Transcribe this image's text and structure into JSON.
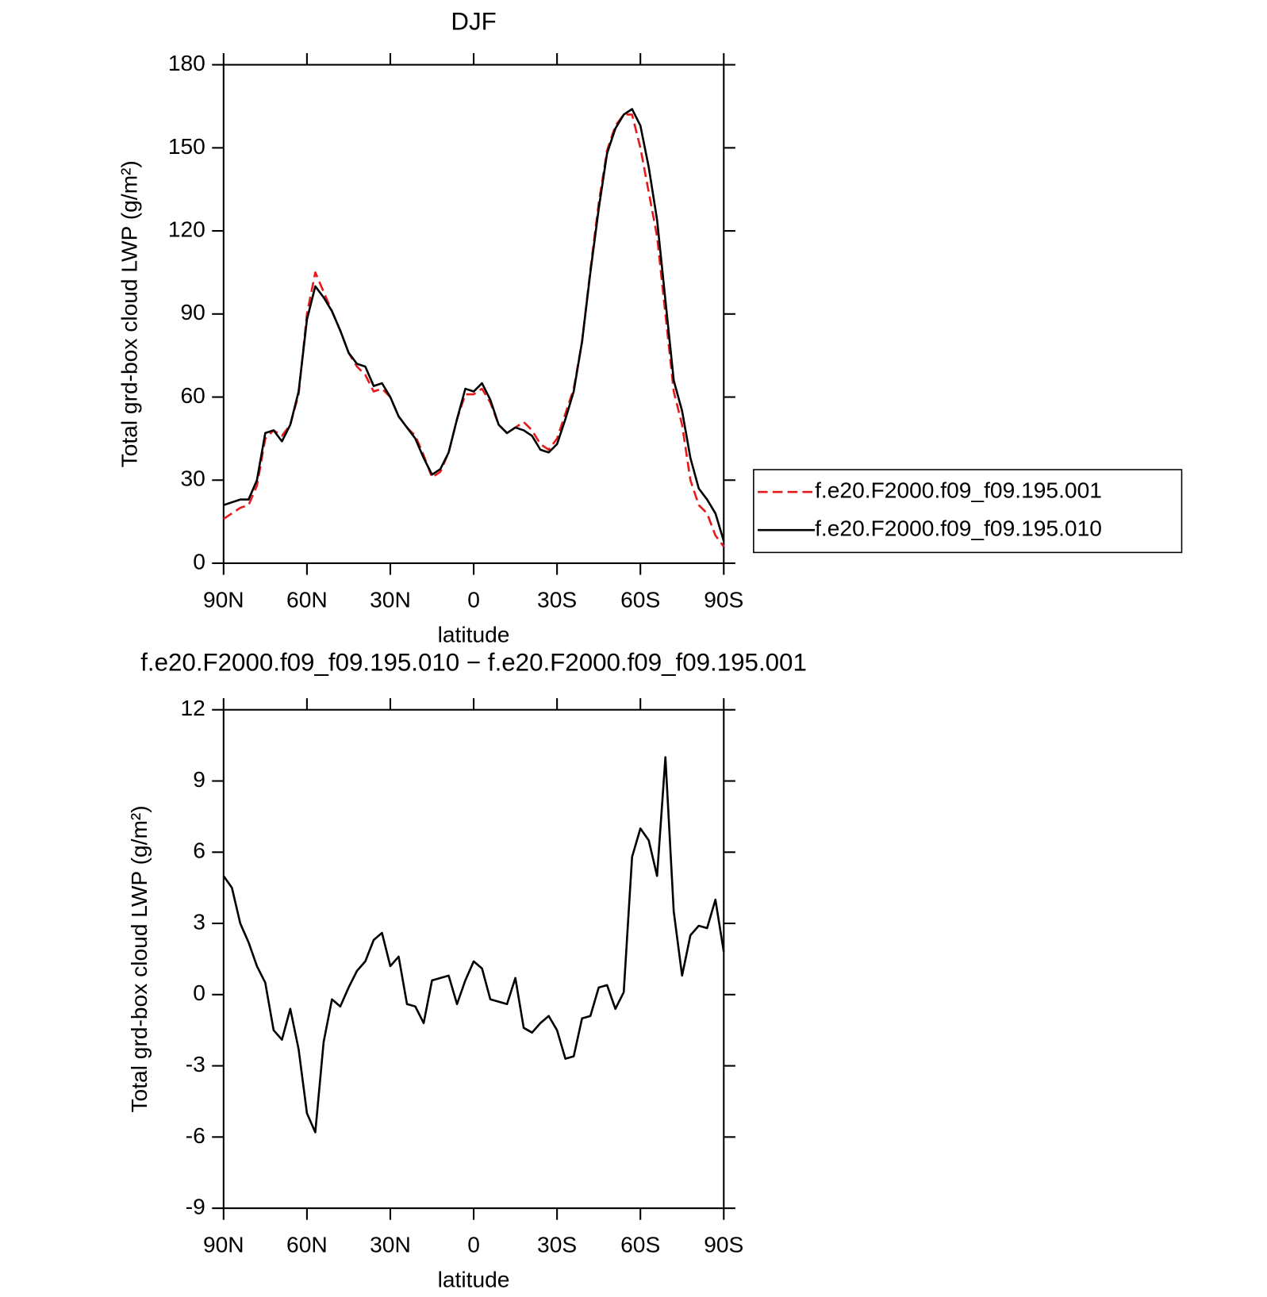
{
  "chart_data": [
    {
      "type": "line",
      "title": "DJF",
      "x_label": "latitude",
      "y_label": "Total grd-box cloud LWP (g/m²)",
      "x": [
        90,
        87,
        84,
        81,
        78,
        75,
        72,
        69,
        66,
        63,
        60,
        57,
        54,
        51,
        48,
        45,
        42,
        39,
        36,
        33,
        30,
        27,
        24,
        21,
        18,
        15,
        12,
        9,
        6,
        3,
        0,
        -3,
        -6,
        -9,
        -12,
        -15,
        -18,
        -21,
        -24,
        -27,
        -30,
        -33,
        -36,
        -39,
        -42,
        -45,
        -48,
        -51,
        -54,
        -57,
        -60,
        -63,
        -66,
        -69,
        -72,
        -75,
        -78,
        -81,
        -84,
        -87,
        -90
      ],
      "series": [
        {
          "name": "f.e20.F2000.f09_f09.195.001",
          "color": "#e8191a",
          "line_style": "dashed",
          "values": [
            16,
            18,
            20,
            21,
            28,
            45,
            48,
            46,
            50,
            61,
            90,
            105,
            98,
            91,
            84,
            76,
            71,
            68,
            62,
            63,
            60,
            53,
            49,
            46,
            39,
            31,
            33,
            40,
            52,
            61,
            61,
            63,
            58,
            50,
            47,
            49,
            51,
            48,
            43,
            41,
            45,
            54,
            63,
            80,
            106,
            130,
            149,
            158,
            162,
            162,
            150,
            134,
            118,
            90,
            62,
            50,
            30,
            21,
            18,
            10,
            6
          ]
        },
        {
          "name": "f.e20.F2000.f09_f09.195.010",
          "color": "#000000",
          "line_style": "solid",
          "values": [
            21,
            22,
            23,
            23,
            30,
            47,
            48,
            44,
            50,
            62,
            88,
            100,
            96,
            91,
            84,
            76,
            72,
            71,
            64,
            65,
            60,
            53,
            49,
            45,
            38,
            32,
            34,
            40,
            52,
            63,
            62,
            65,
            59,
            50,
            47,
            49,
            48,
            46,
            41,
            40,
            43,
            52,
            62,
            80,
            105,
            128,
            148,
            157,
            162,
            164,
            158,
            143,
            124,
            95,
            66,
            55,
            38,
            27,
            23,
            18,
            8
          ]
        }
      ],
      "xlim": [
        90,
        -90
      ],
      "xticks": [
        {
          "value": 90,
          "label": "90N"
        },
        {
          "value": 60,
          "label": "60N"
        },
        {
          "value": 30,
          "label": "30N"
        },
        0,
        {
          "value": -30,
          "label": "30S"
        },
        {
          "value": -60,
          "label": "60S"
        },
        {
          "value": -90,
          "label": "90S"
        }
      ],
      "ylim": [
        0,
        180
      ],
      "yticks": [
        0,
        30,
        60,
        90,
        120,
        150,
        180
      ],
      "legend": "right"
    },
    {
      "type": "line",
      "title": "f.e20.F2000.f09_f09.195.010 − f.e20.F2000.f09_f09.195.001",
      "x_label": "latitude",
      "y_label": "Total grd-box cloud LWP (g/m²)",
      "x": [
        90,
        87,
        84,
        81,
        78,
        75,
        72,
        69,
        66,
        63,
        60,
        57,
        54,
        51,
        48,
        45,
        42,
        39,
        36,
        33,
        30,
        27,
        24,
        21,
        18,
        15,
        12,
        9,
        6,
        3,
        0,
        -3,
        -6,
        -9,
        -12,
        -15,
        -18,
        -21,
        -24,
        -27,
        -30,
        -33,
        -36,
        -39,
        -42,
        -45,
        -48,
        -51,
        -54,
        -57,
        -60,
        -63,
        -66,
        -69,
        -72,
        -75,
        -78,
        -81,
        -84,
        -87,
        -90
      ],
      "series": [
        {
          "color": "#000000",
          "line_style": "solid",
          "values": [
            5.0,
            4.5,
            3.0,
            2.2,
            1.2,
            0.5,
            -1.5,
            -1.9,
            -0.6,
            -2.3,
            -5.0,
            -5.8,
            -2.0,
            -0.2,
            -0.5,
            0.3,
            1.0,
            1.4,
            2.3,
            2.6,
            1.2,
            1.6,
            -0.4,
            -0.5,
            -1.2,
            0.6,
            0.7,
            0.8,
            -0.4,
            0.6,
            1.4,
            1.1,
            -0.2,
            -0.3,
            -0.4,
            0.7,
            -1.4,
            -1.6,
            -1.2,
            -0.9,
            -1.5,
            -2.7,
            -2.6,
            -1.0,
            -0.9,
            0.3,
            0.4,
            -0.6,
            0.1,
            5.8,
            7.0,
            6.5,
            5.0,
            10.0,
            3.5,
            0.8,
            2.5,
            2.9,
            2.8,
            4.0,
            1.8
          ]
        }
      ],
      "xlim": [
        90,
        -90
      ],
      "xticks": [
        {
          "value": 90,
          "label": "90N"
        },
        {
          "value": 60,
          "label": "60N"
        },
        {
          "value": 30,
          "label": "30N"
        },
        0,
        {
          "value": -30,
          "label": "30S"
        },
        {
          "value": -60,
          "label": "60S"
        },
        {
          "value": -90,
          "label": "90S"
        }
      ],
      "ylim": [
        -9,
        12
      ],
      "yticks": [
        -9,
        -6,
        -3,
        0,
        3,
        6,
        9,
        12
      ]
    }
  ]
}
